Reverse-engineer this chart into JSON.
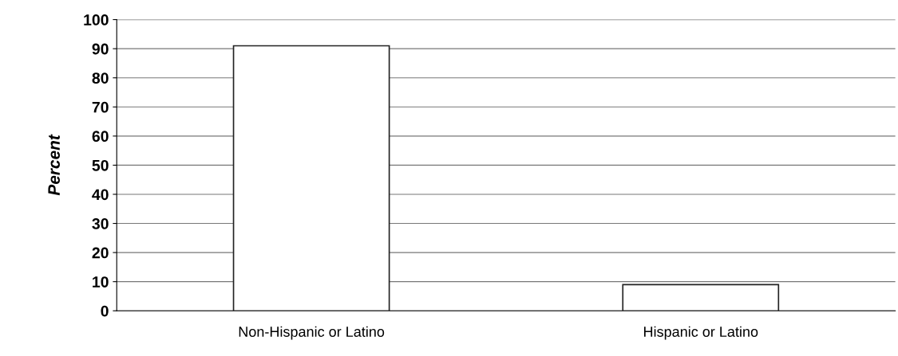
{
  "chart_data": {
    "type": "bar",
    "ylabel": "Percent",
    "categories": [
      "Non-Hispanic or Latino",
      "Hispanic or Latino"
    ],
    "values": [
      91,
      9
    ],
    "color": "#ffffff",
    "ylim": [
      0,
      100
    ],
    "yticks": [
      0,
      10,
      20,
      30,
      40,
      50,
      60,
      70,
      80,
      90,
      100
    ],
    "grid": "y"
  }
}
